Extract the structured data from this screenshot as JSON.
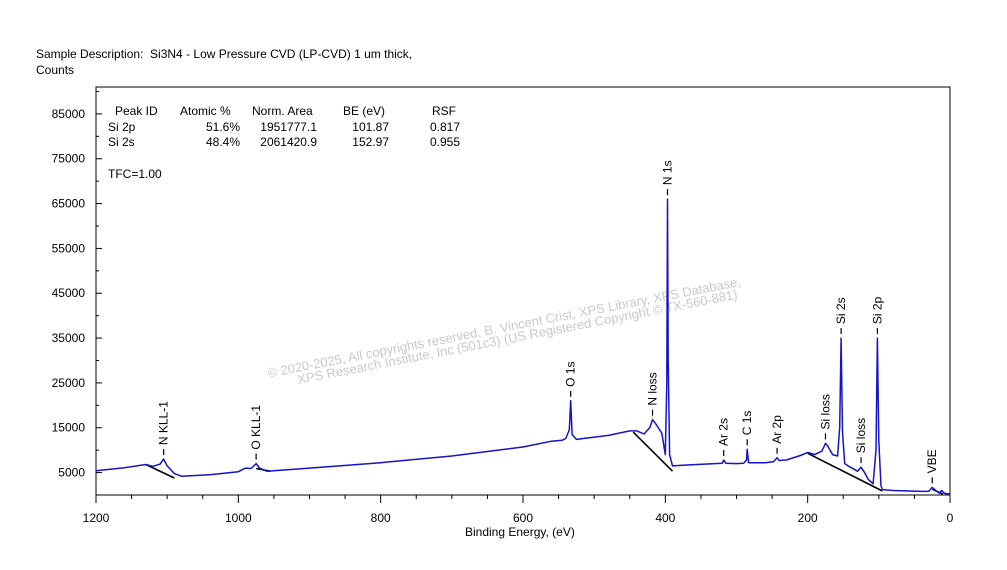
{
  "header": {
    "line1": "Sample Description:  Si3N4 - Low Pressure CVD (LP-CVD) 1 um thick,",
    "line2": "Counts"
  },
  "table": {
    "headers": [
      "Peak ID",
      "Atomic %",
      "Norm. Area",
      "BE (eV)",
      "RSF"
    ],
    "rows": [
      [
        "Si 2p",
        "51.6%",
        "1951777.1",
        "101.87",
        "0.817"
      ],
      [
        "Si 2s",
        "48.4%",
        "2061420.9",
        "152.97",
        "0.955"
      ]
    ],
    "tfc": "TFC=1.00"
  },
  "watermark": {
    "line1": "©  2020-2025,  All copyrights reserved,    B. Vincent Crist,  XPS Library, XPS Database,",
    "line2": "XPS Research Institute, Inc (501c3)   (US Registered Copyright © TX-560-881)"
  },
  "chart_data": {
    "type": "line",
    "xlabel": "Binding Energy, (eV)",
    "ylabel": "Counts",
    "x_reversed": true,
    "xlim": [
      1200,
      0
    ],
    "ylim": [
      0,
      91000
    ],
    "x_ticks": [
      1200,
      1000,
      800,
      600,
      400,
      200,
      0
    ],
    "y_ticks": [
      5000,
      15000,
      25000,
      35000,
      45000,
      55000,
      65000,
      75000,
      85000
    ],
    "colors": {
      "spectrum": "#1414c8",
      "background": "#000000",
      "frame": "#000000"
    },
    "series": [
      {
        "points": [
          [
            1200,
            5400
          ],
          [
            1160,
            6100
          ],
          [
            1130,
            6800
          ],
          [
            1120,
            6400
          ],
          [
            1110,
            6900
          ],
          [
            1105,
            8000
          ],
          [
            1100,
            6500
          ],
          [
            1090,
            4800
          ],
          [
            1080,
            4200
          ],
          [
            1040,
            4500
          ],
          [
            1000,
            5200
          ],
          [
            990,
            6000
          ],
          [
            982,
            5900
          ],
          [
            975,
            7000
          ],
          [
            970,
            6000
          ],
          [
            960,
            5300
          ],
          [
            900,
            6000
          ],
          [
            800,
            7200
          ],
          [
            700,
            8700
          ],
          [
            600,
            10700
          ],
          [
            560,
            12000
          ],
          [
            545,
            12200
          ],
          [
            540,
            12600
          ],
          [
            535,
            14500
          ],
          [
            533,
            21000
          ],
          [
            531,
            13500
          ],
          [
            525,
            12400
          ],
          [
            480,
            13300
          ],
          [
            450,
            14300
          ],
          [
            440,
            14300
          ],
          [
            430,
            13600
          ],
          [
            422,
            15000
          ],
          [
            418,
            16800
          ],
          [
            414,
            16000
          ],
          [
            405,
            13800
          ],
          [
            400,
            9000
          ],
          [
            398,
            25000
          ],
          [
            397,
            66000
          ],
          [
            396,
            30000
          ],
          [
            394,
            9000
          ],
          [
            390,
            6500
          ],
          [
            370,
            6700
          ],
          [
            330,
            7000
          ],
          [
            320,
            7100
          ],
          [
            318,
            7800
          ],
          [
            315,
            7100
          ],
          [
            300,
            7000
          ],
          [
            290,
            7100
          ],
          [
            286,
            7800
          ],
          [
            285,
            10200
          ],
          [
            283,
            7200
          ],
          [
            260,
            7200
          ],
          [
            248,
            7400
          ],
          [
            243,
            8300
          ],
          [
            240,
            7700
          ],
          [
            230,
            7800
          ],
          [
            210,
            8800
          ],
          [
            200,
            9500
          ],
          [
            190,
            9000
          ],
          [
            180,
            9800
          ],
          [
            175,
            11500
          ],
          [
            172,
            11000
          ],
          [
            165,
            9000
          ],
          [
            158,
            8700
          ],
          [
            155,
            15000
          ],
          [
            153,
            35000
          ],
          [
            151,
            14000
          ],
          [
            148,
            7000
          ],
          [
            140,
            6200
          ],
          [
            130,
            5300
          ],
          [
            125,
            6200
          ],
          [
            120,
            5000
          ],
          [
            115,
            3500
          ],
          [
            108,
            2500
          ],
          [
            104,
            10000
          ],
          [
            102,
            35000
          ],
          [
            100,
            12000
          ],
          [
            97,
            2000
          ],
          [
            95,
            1200
          ],
          [
            80,
            1000
          ],
          [
            40,
            800
          ],
          [
            30,
            800
          ],
          [
            25,
            1700
          ],
          [
            20,
            1000
          ],
          [
            15,
            400
          ],
          [
            12,
            1000
          ],
          [
            8,
            400
          ],
          [
            0,
            200
          ]
        ]
      }
    ],
    "background_lines": [
      [
        [
          1130,
          6800
        ],
        [
          1090,
          3800
        ]
      ],
      [
        [
          975,
          5900
        ],
        [
          955,
          5300
        ]
      ],
      [
        [
          445,
          14000
        ],
        [
          390,
          5300
        ]
      ],
      [
        [
          200,
          9300
        ],
        [
          95,
          900
        ]
      ],
      [
        [
          25,
          1300
        ],
        [
          10,
          200
        ]
      ]
    ],
    "peak_labels": [
      {
        "text": "N KLL-1",
        "x": 1105,
        "y": 8000
      },
      {
        "text": "O KLL-1",
        "x": 975,
        "y": 7000
      },
      {
        "text": "O 1s",
        "x": 533,
        "y": 21000
      },
      {
        "text": "N loss",
        "x": 418,
        "y": 16800
      },
      {
        "text": "N 1s",
        "x": 397,
        "y": 66000
      },
      {
        "text": "Ar 2s",
        "x": 318,
        "y": 7800
      },
      {
        "text": "C 1s",
        "x": 285,
        "y": 10200
      },
      {
        "text": "Ar 2p",
        "x": 243,
        "y": 8300
      },
      {
        "text": "Si loss",
        "x": 175,
        "y": 11500
      },
      {
        "text": "Si 2s",
        "x": 153,
        "y": 35000
      },
      {
        "text": "Si loss",
        "x": 125,
        "y": 6200
      },
      {
        "text": "Si 2p",
        "x": 102,
        "y": 35000
      },
      {
        "text": "VBE",
        "x": 25,
        "y": 1700
      }
    ]
  }
}
